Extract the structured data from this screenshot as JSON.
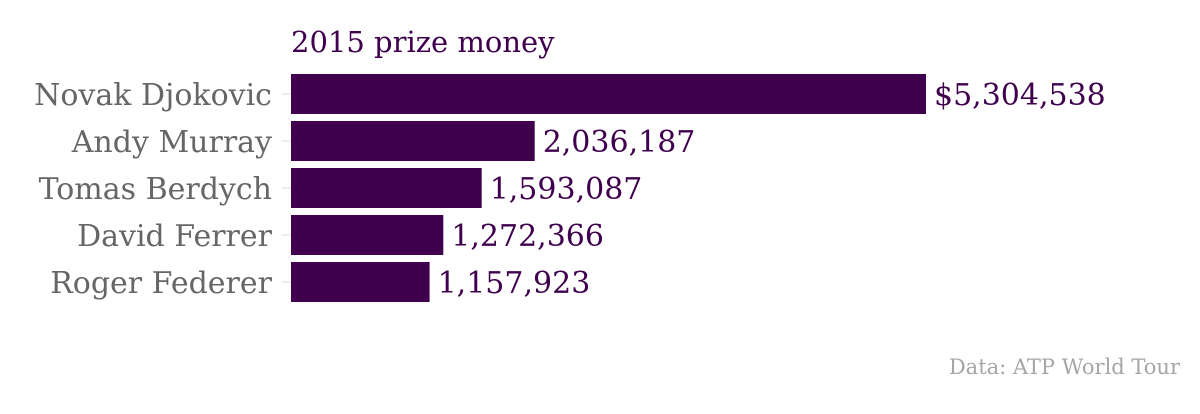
{
  "chart_data": {
    "type": "bar",
    "orientation": "horizontal",
    "title": "2015 prize money",
    "categories": [
      "Novak Djokovic",
      "Andy Murray",
      "Tomas Berdych",
      "David Ferrer",
      "Roger Federer"
    ],
    "values": [
      5304538,
      2036187,
      1593087,
      1272366,
      1157923
    ],
    "value_labels": [
      "$5,304,538",
      "2,036,187",
      "1,593,087",
      "1,272,366",
      "1,157,923"
    ],
    "xlim": [
      0,
      5304538
    ],
    "grid": false,
    "legend": "none",
    "source": "Data: ATP World Tour"
  },
  "colors": {
    "bar": "#3f004e",
    "title": "#3f004e",
    "category_label": "#666666",
    "value_label": "#3f004e",
    "source": "#a6a6a6"
  }
}
